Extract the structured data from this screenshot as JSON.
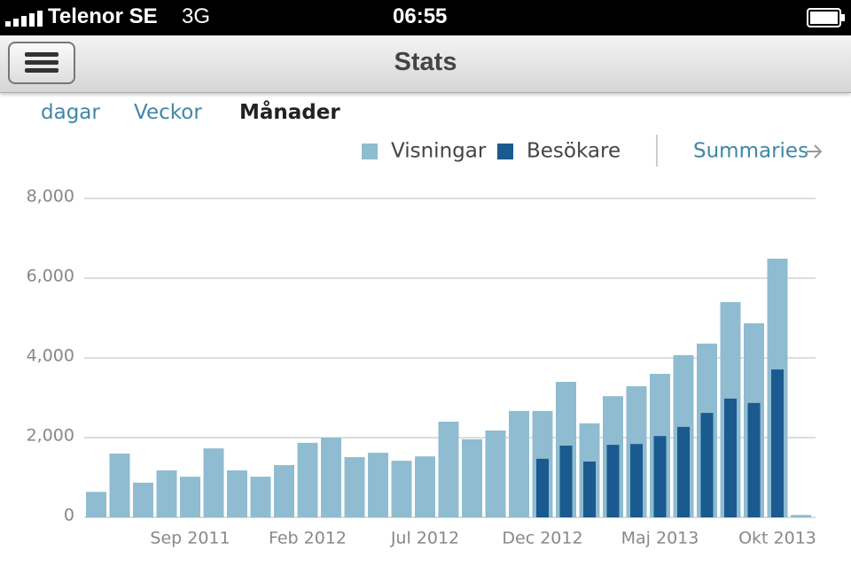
{
  "status": {
    "carrier": "Telenor SE",
    "network": "3G",
    "time": "06:55"
  },
  "nav": {
    "title": "Stats"
  },
  "tabs": [
    "dagar",
    "Veckor",
    "Månader"
  ],
  "summaries": "Summaries",
  "chart_data": {
    "type": "bar",
    "categories": [
      null,
      null,
      null,
      null,
      "Sep 2011",
      null,
      null,
      null,
      null,
      "Feb 2012",
      null,
      null,
      null,
      null,
      "Jul 2012",
      null,
      null,
      null,
      null,
      "Dec 2012",
      null,
      null,
      null,
      null,
      "Maj 2013",
      null,
      null,
      null,
      null,
      "Okt 2013",
      null
    ],
    "series": [
      {
        "name": "Visningar",
        "color": "#8fbcd0",
        "values": [
          640,
          1600,
          870,
          1180,
          1020,
          1730,
          1180,
          1020,
          1310,
          1870,
          2000,
          1510,
          1620,
          1420,
          1530,
          2400,
          1960,
          2180,
          2670,
          2670,
          3400,
          2360,
          3040,
          3290,
          3600,
          4070,
          4360,
          5400,
          4870,
          6490,
          60
        ]
      },
      {
        "name": "Besökare",
        "color": "#1b5a8f",
        "values": [
          null,
          null,
          null,
          null,
          null,
          null,
          null,
          null,
          null,
          null,
          null,
          null,
          null,
          null,
          null,
          null,
          null,
          null,
          null,
          1470,
          1800,
          1400,
          1820,
          1840,
          2040,
          2270,
          2620,
          2980,
          2870,
          3710,
          null
        ]
      }
    ],
    "ylim": [
      0,
      8000
    ],
    "yticks": [
      0,
      {
        "value": 2000,
        "label": "2,000"
      },
      {
        "value": 4000,
        "label": "4,000"
      },
      {
        "value": 6000,
        "label": "6,000"
      },
      {
        "value": 8000,
        "label": "8,000"
      }
    ],
    "grid": true
  }
}
